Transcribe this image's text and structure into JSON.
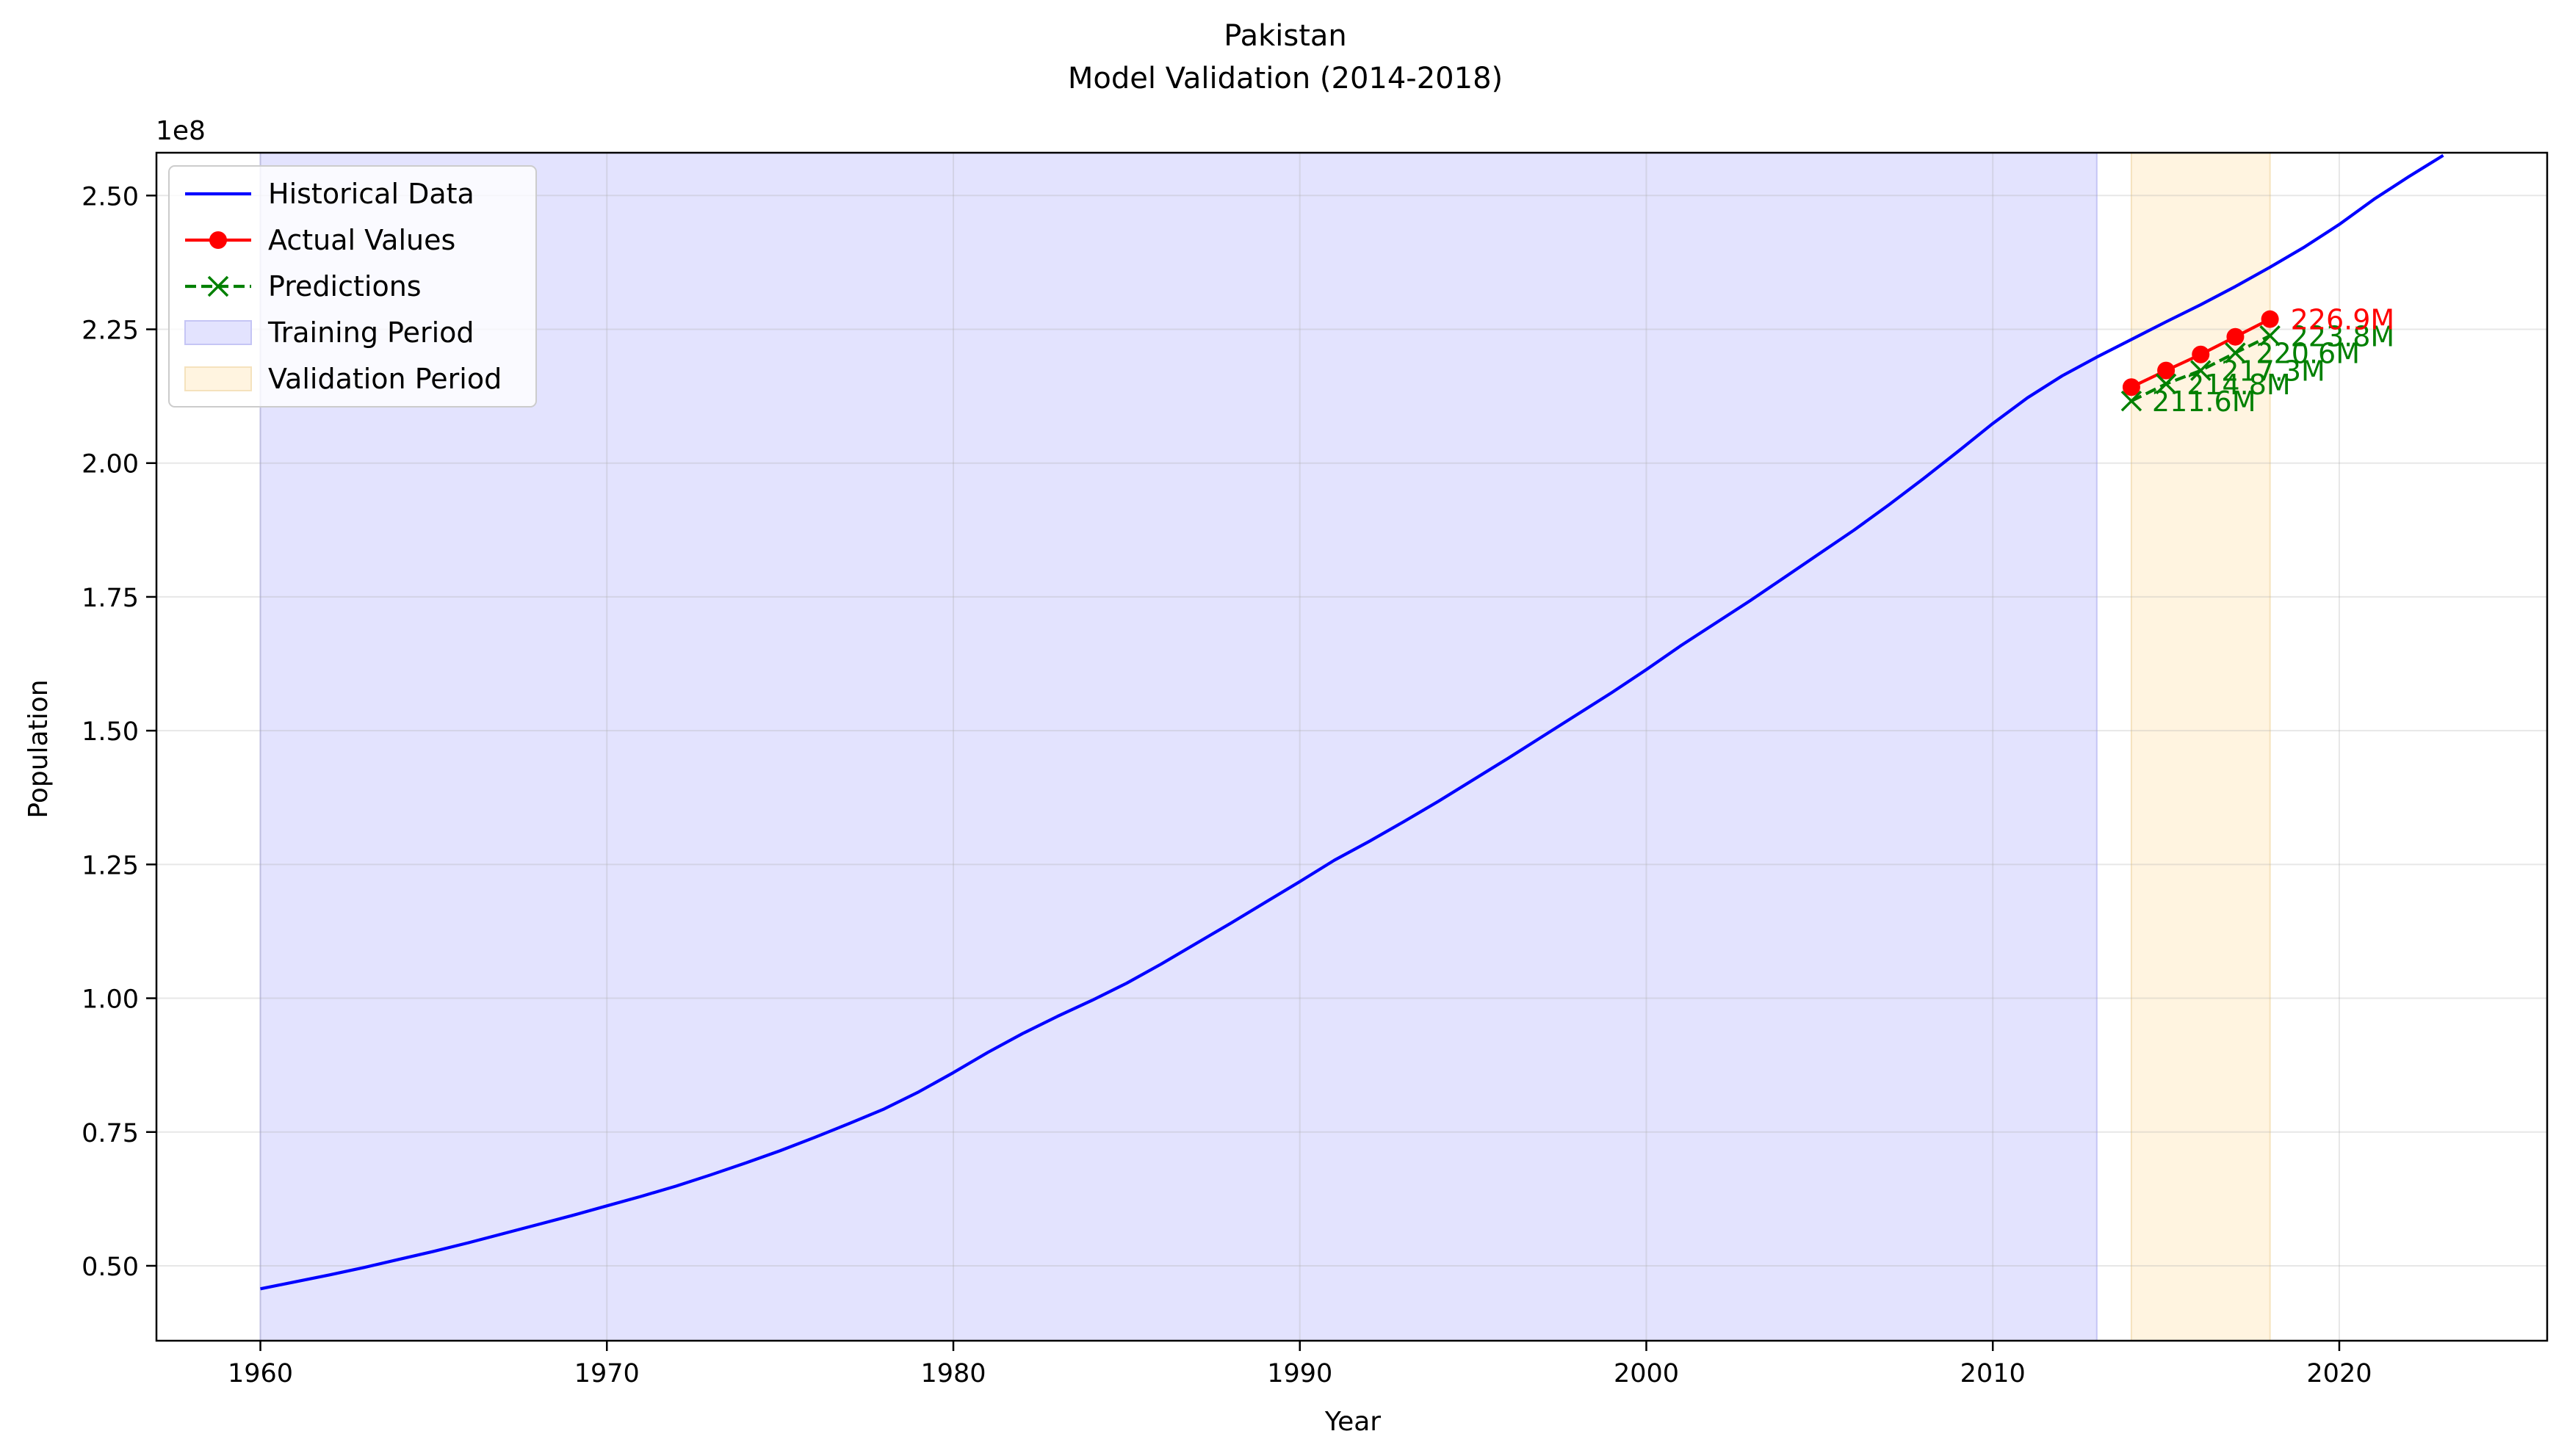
{
  "chart_data": {
    "type": "line",
    "title": "Pakistan",
    "subtitle": "Model Validation (2014-2018)",
    "xlabel": "Year",
    "ylabel": "Population",
    "y_offset_label": "1e8",
    "xlim": [
      1957,
      2026
    ],
    "ylim": [
      36000000,
      258000000
    ],
    "x_ticks": [
      1960,
      1970,
      1980,
      1990,
      2000,
      2010,
      2020
    ],
    "y_ticks": [
      50000000,
      75000000,
      100000000,
      125000000,
      150000000,
      175000000,
      200000000,
      225000000,
      250000000
    ],
    "y_tick_labels": [
      "0.50",
      "0.75",
      "1.00",
      "1.25",
      "1.50",
      "1.75",
      "2.00",
      "2.25",
      "2.50"
    ],
    "grid": true,
    "legend_position": "top-left",
    "colors": {
      "historical": "#0000ff",
      "actual": "#ff0000",
      "prediction": "#008000",
      "training": "#e3e3fe",
      "validation": "#fff4e0"
    },
    "shaded_regions": [
      {
        "name": "Training Period",
        "x_start": 1960,
        "x_end": 2013
      },
      {
        "name": "Validation Period",
        "x_start": 2014,
        "x_end": 2018
      }
    ],
    "series": [
      {
        "name": "Historical Data",
        "style": "solid",
        "x": [
          1960,
          1961,
          1962,
          1963,
          1964,
          1965,
          1966,
          1967,
          1968,
          1969,
          1970,
          1971,
          1972,
          1973,
          1974,
          1975,
          1976,
          1977,
          1978,
          1979,
          1980,
          1981,
          1982,
          1983,
          1984,
          1985,
          1986,
          1987,
          1988,
          1989,
          1990,
          1991,
          1992,
          1993,
          1994,
          1995,
          1996,
          1997,
          1998,
          1999,
          2000,
          2001,
          2002,
          2003,
          2004,
          2005,
          2006,
          2007,
          2008,
          2009,
          2010,
          2011,
          2012,
          2013,
          2014,
          2015,
          2016,
          2017,
          2018,
          2019,
          2020,
          2021,
          2022,
          2023
        ],
        "y": [
          45700000,
          47000000,
          48300000,
          49700000,
          51200000,
          52700000,
          54300000,
          56000000,
          57700000,
          59400000,
          61200000,
          63000000,
          64900000,
          67000000,
          69200000,
          71500000,
          74000000,
          76600000,
          79300000,
          82500000,
          86100000,
          89900000,
          93400000,
          96600000,
          99600000,
          102800000,
          106400000,
          110200000,
          114000000,
          117900000,
          121800000,
          125800000,
          129300000,
          133000000,
          136800000,
          140800000,
          144800000,
          148900000,
          153000000,
          157100000,
          161400000,
          165900000,
          170100000,
          174300000,
          178700000,
          183100000,
          187500000,
          192200000,
          197100000,
          202200000,
          207400000,
          212200000,
          216300000,
          219800000,
          223100000,
          226400000,
          229600000,
          233000000,
          236600000,
          240400000,
          244600000,
          249300000,
          253500000,
          257500000
        ]
      },
      {
        "name": "Actual Values",
        "style": "solid-marker-circle",
        "x": [
          2014,
          2015,
          2016,
          2017,
          2018
        ],
        "y": [
          214200000,
          217300000,
          220300000,
          223600000,
          226900000
        ]
      },
      {
        "name": "Predictions",
        "style": "dashed-marker-x",
        "x": [
          2014,
          2015,
          2016,
          2017,
          2018
        ],
        "y": [
          211600000,
          214800000,
          217300000,
          220600000,
          223800000
        ]
      }
    ],
    "annotations": {
      "actual": [
        {
          "x": 2018,
          "y": 226900000,
          "label": "226.9M"
        }
      ],
      "predictions": [
        {
          "x": 2014,
          "y": 211600000,
          "label": "211.6M"
        },
        {
          "x": 2015,
          "y": 214800000,
          "label": "214.8M"
        },
        {
          "x": 2016,
          "y": 217300000,
          "label": "217.3M"
        },
        {
          "x": 2017,
          "y": 220600000,
          "label": "220.6M"
        },
        {
          "x": 2018,
          "y": 223800000,
          "label": "223.8M"
        }
      ]
    }
  }
}
